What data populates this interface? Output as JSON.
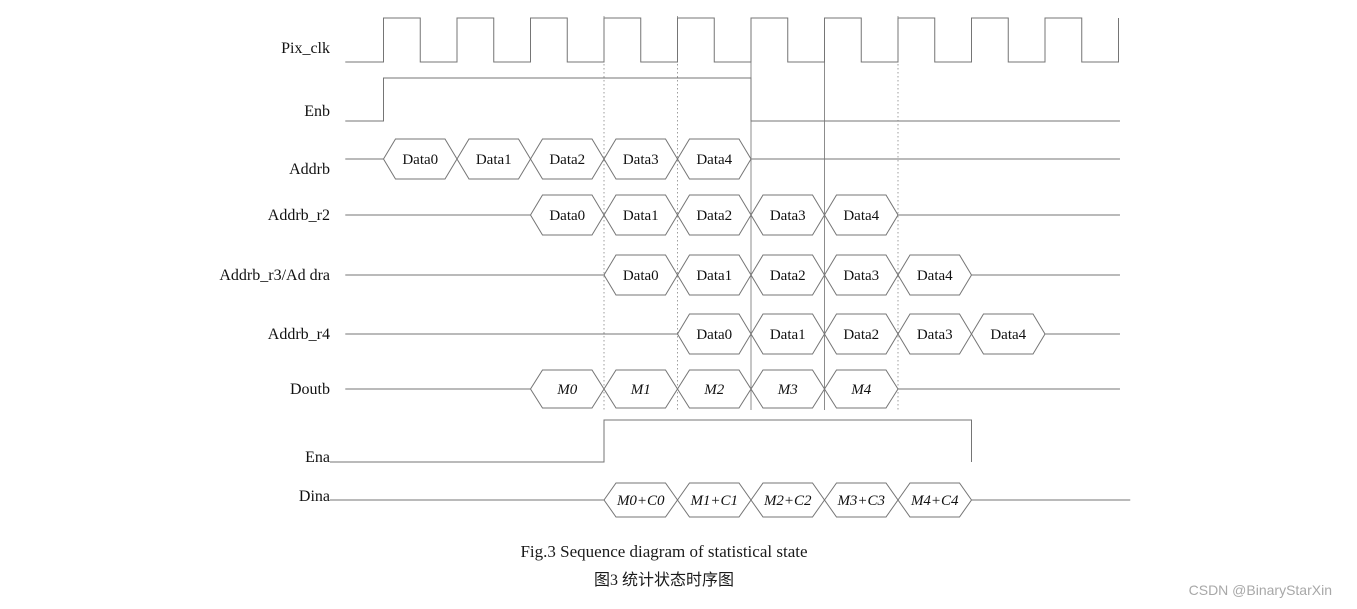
{
  "colors": {
    "background": "#ffffff",
    "line": "#757575",
    "text": "#111111",
    "guide_dotted": "#9e9e9e",
    "guide_solid": "#8c8c8c",
    "watermark": "#a8a8a8"
  },
  "timing": {
    "description": "Timing diagram; x-axis in clock cycles, cycle 0 = first rising edge of Pix_clk",
    "rows": [
      {
        "id": "pix_clk",
        "label": "Pix_clk",
        "type": "clock",
        "start_cycle": -0.52,
        "first_rise_cycle": 0,
        "num_pulses": 10,
        "duty": 0.5
      },
      {
        "id": "enb",
        "label": "Enb",
        "type": "logic",
        "line_start": -0.52,
        "rise": 0,
        "fall": 5,
        "line_end": 10.02
      },
      {
        "id": "addrb",
        "label": "Addrb",
        "type": "bus",
        "line_start": -0.52,
        "bus_start": 0,
        "values": [
          "Data0",
          "Data1",
          "Data2",
          "Data3",
          "Data4"
        ],
        "line_end": 10.02
      },
      {
        "id": "addrb_r2",
        "label": "Addrb_r2",
        "type": "bus",
        "line_start": -0.52,
        "bus_start": 2,
        "values": [
          "Data0",
          "Data1",
          "Data2",
          "Data3",
          "Data4"
        ],
        "line_end": 10.02
      },
      {
        "id": "addrb_r3",
        "label": "Addrb_r3/Ad dra",
        "type": "bus",
        "line_start": -0.52,
        "bus_start": 3,
        "values": [
          "Data0",
          "Data1",
          "Data2",
          "Data3",
          "Data4"
        ],
        "line_end": 10.02
      },
      {
        "id": "addrb_r4",
        "label": "Addrb_r4",
        "type": "bus",
        "line_start": -0.52,
        "bus_start": 4,
        "values": [
          "Data0",
          "Data1",
          "Data2",
          "Data3",
          "Data4"
        ],
        "line_end": 10.02
      },
      {
        "id": "doutb",
        "label": "Doutb",
        "type": "bus",
        "italic": true,
        "line_start": -0.52,
        "bus_start": 2,
        "values": [
          "M0",
          "M1",
          "M2",
          "M3",
          "M4"
        ],
        "line_end": 10.02
      },
      {
        "id": "ena",
        "label": "Ena",
        "type": "logic",
        "line_start": -0.73,
        "rise": 3,
        "fall": 8,
        "line_end": null
      },
      {
        "id": "dina",
        "label": "Dina",
        "type": "bus",
        "italic": true,
        "line_start": -0.73,
        "bus_start": 3,
        "values": [
          "M0+C0",
          "M1+C1",
          "M2+C2",
          "M3+C3",
          "M4+C4"
        ],
        "line_end": 10.16
      }
    ],
    "guides": {
      "dotted_cycles": [
        3,
        4,
        7
      ],
      "solid_cycles": [
        5,
        6
      ]
    }
  },
  "captions": {
    "english": "Fig.3 Sequence diagram of statistical state",
    "chinese": "图3 统计状态时序图"
  },
  "watermark": "CSDN @BinaryStarXin"
}
